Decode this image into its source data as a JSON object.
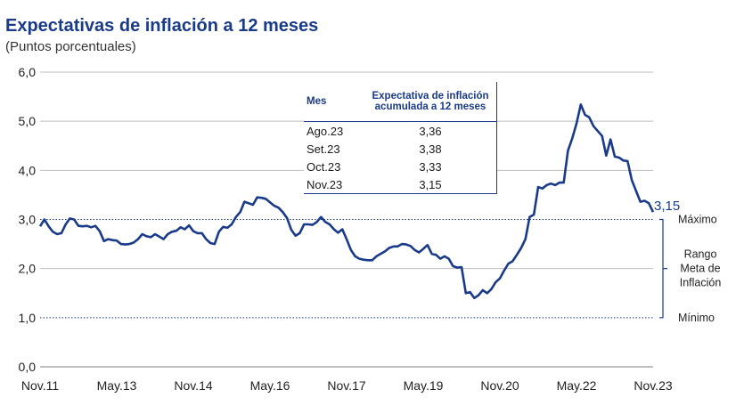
{
  "title": "Expectativas de inflación a 12 meses",
  "subtitle": "(Puntos porcentuales)",
  "table": {
    "headers": [
      "Mes",
      "Expectativa de inflación acumulada a 12 meses"
    ],
    "rows": [
      {
        "mes": "Ago.23",
        "valor": "3,36"
      },
      {
        "mes": "Set.23",
        "valor": "3,38"
      },
      {
        "mes": "Oct.23",
        "valor": "3,33"
      },
      {
        "mes": "Nov.23",
        "valor": "3,15"
      }
    ]
  },
  "range_labels": {
    "max": "Máximo",
    "min": "Mínimo",
    "band": [
      "Rango",
      "Meta de",
      "Inflación"
    ]
  },
  "last_value_label": "3,15",
  "colors": {
    "line": "#1a3a8a",
    "grid": "#bfbfbf",
    "target": "#1a3a8a"
  },
  "chart_data": {
    "type": "line",
    "title": "Expectativas de inflación a 12 meses",
    "ylabel": "(Puntos porcentuales)",
    "ylim": [
      0,
      6
    ],
    "yticks": [
      "0,0",
      "1,0",
      "2,0",
      "3,0",
      "4,0",
      "5,0",
      "6,0"
    ],
    "xlim": [
      "2011-11",
      "2023-11"
    ],
    "xticks": [
      "Nov.11",
      "May.13",
      "Nov.14",
      "May.16",
      "Nov.17",
      "May.19",
      "Nov.20",
      "May.22",
      "Nov.23"
    ],
    "grid": true,
    "target_range": [
      1,
      3
    ],
    "series": [
      {
        "values": [
          [
            "2011-11",
            2.86
          ],
          [
            "2011-12",
            3.0
          ],
          [
            "2012-01",
            2.86
          ],
          [
            "2012-02",
            2.75
          ],
          [
            "2012-03",
            2.7
          ],
          [
            "2012-04",
            2.72
          ],
          [
            "2012-05",
            2.9
          ],
          [
            "2012-06",
            3.02
          ],
          [
            "2012-07",
            3.0
          ],
          [
            "2012-08",
            2.87
          ],
          [
            "2012-09",
            2.86
          ],
          [
            "2012-10",
            2.87
          ],
          [
            "2012-11",
            2.84
          ],
          [
            "2012-12",
            2.87
          ],
          [
            "2013-01",
            2.76
          ],
          [
            "2013-02",
            2.56
          ],
          [
            "2013-03",
            2.6
          ],
          [
            "2013-04",
            2.58
          ],
          [
            "2013-05",
            2.57
          ],
          [
            "2013-06",
            2.5
          ],
          [
            "2013-07",
            2.49
          ],
          [
            "2013-08",
            2.5
          ],
          [
            "2013-09",
            2.53
          ],
          [
            "2013-10",
            2.6
          ],
          [
            "2013-11",
            2.7
          ],
          [
            "2013-12",
            2.66
          ],
          [
            "2014-01",
            2.64
          ],
          [
            "2014-02",
            2.7
          ],
          [
            "2014-03",
            2.65
          ],
          [
            "2014-04",
            2.6
          ],
          [
            "2014-05",
            2.7
          ],
          [
            "2014-06",
            2.75
          ],
          [
            "2014-07",
            2.77
          ],
          [
            "2014-08",
            2.84
          ],
          [
            "2014-09",
            2.8
          ],
          [
            "2014-10",
            2.88
          ],
          [
            "2014-11",
            2.76
          ],
          [
            "2014-12",
            2.72
          ],
          [
            "2015-01",
            2.72
          ],
          [
            "2015-02",
            2.6
          ],
          [
            "2015-03",
            2.52
          ],
          [
            "2015-04",
            2.5
          ],
          [
            "2015-05",
            2.75
          ],
          [
            "2015-06",
            2.85
          ],
          [
            "2015-07",
            2.83
          ],
          [
            "2015-08",
            2.9
          ],
          [
            "2015-09",
            3.05
          ],
          [
            "2015-10",
            3.15
          ],
          [
            "2015-11",
            3.36
          ],
          [
            "2015-12",
            3.33
          ],
          [
            "2016-01",
            3.3
          ],
          [
            "2016-02",
            3.45
          ],
          [
            "2016-03",
            3.44
          ],
          [
            "2016-04",
            3.42
          ],
          [
            "2016-05",
            3.35
          ],
          [
            "2016-06",
            3.28
          ],
          [
            "2016-07",
            3.24
          ],
          [
            "2016-08",
            3.15
          ],
          [
            "2016-09",
            3.03
          ],
          [
            "2016-10",
            2.79
          ],
          [
            "2016-11",
            2.67
          ],
          [
            "2016-12",
            2.72
          ],
          [
            "2017-01",
            2.9
          ],
          [
            "2017-02",
            2.9
          ],
          [
            "2017-03",
            2.89
          ],
          [
            "2017-04",
            2.95
          ],
          [
            "2017-05",
            3.05
          ],
          [
            "2017-06",
            2.95
          ],
          [
            "2017-07",
            2.9
          ],
          [
            "2017-08",
            2.8
          ],
          [
            "2017-09",
            2.73
          ],
          [
            "2017-10",
            2.8
          ],
          [
            "2017-11",
            2.6
          ],
          [
            "2017-12",
            2.38
          ],
          [
            "2018-01",
            2.25
          ],
          [
            "2018-02",
            2.2
          ],
          [
            "2018-03",
            2.18
          ],
          [
            "2018-04",
            2.17
          ],
          [
            "2018-05",
            2.17
          ],
          [
            "2018-06",
            2.25
          ],
          [
            "2018-07",
            2.3
          ],
          [
            "2018-08",
            2.35
          ],
          [
            "2018-09",
            2.42
          ],
          [
            "2018-10",
            2.45
          ],
          [
            "2018-11",
            2.45
          ],
          [
            "2018-12",
            2.5
          ],
          [
            "2019-01",
            2.49
          ],
          [
            "2019-02",
            2.46
          ],
          [
            "2019-03",
            2.38
          ],
          [
            "2019-04",
            2.33
          ],
          [
            "2019-05",
            2.4
          ],
          [
            "2019-06",
            2.48
          ],
          [
            "2019-07",
            2.3
          ],
          [
            "2019-08",
            2.28
          ],
          [
            "2019-09",
            2.2
          ],
          [
            "2019-10",
            2.25
          ],
          [
            "2019-11",
            2.2
          ],
          [
            "2019-12",
            2.05
          ],
          [
            "2020-01",
            2.02
          ],
          [
            "2020-02",
            2.03
          ],
          [
            "2020-03",
            1.5
          ],
          [
            "2020-04",
            1.52
          ],
          [
            "2020-05",
            1.4
          ],
          [
            "2020-06",
            1.46
          ],
          [
            "2020-07",
            1.56
          ],
          [
            "2020-08",
            1.5
          ],
          [
            "2020-09",
            1.58
          ],
          [
            "2020-10",
            1.72
          ],
          [
            "2020-11",
            1.8
          ],
          [
            "2020-12",
            1.96
          ],
          [
            "2021-01",
            2.1
          ],
          [
            "2021-02",
            2.15
          ],
          [
            "2021-03",
            2.28
          ],
          [
            "2021-04",
            2.42
          ],
          [
            "2021-05",
            2.6
          ],
          [
            "2021-06",
            3.05
          ],
          [
            "2021-07",
            3.1
          ],
          [
            "2021-08",
            3.66
          ],
          [
            "2021-09",
            3.63
          ],
          [
            "2021-10",
            3.7
          ],
          [
            "2021-11",
            3.73
          ],
          [
            "2021-12",
            3.7
          ],
          [
            "2022-01",
            3.75
          ],
          [
            "2022-02",
            3.75
          ],
          [
            "2022-03",
            4.4
          ],
          [
            "2022-04",
            4.65
          ],
          [
            "2022-05",
            4.95
          ],
          [
            "2022-06",
            5.34
          ],
          [
            "2022-07",
            5.13
          ],
          [
            "2022-08",
            5.08
          ],
          [
            "2022-09",
            4.9
          ],
          [
            "2022-10",
            4.8
          ],
          [
            "2022-11",
            4.7
          ],
          [
            "2022-12",
            4.3
          ],
          [
            "2023-01",
            4.63
          ],
          [
            "2023-02",
            4.28
          ],
          [
            "2023-03",
            4.26
          ],
          [
            "2023-04",
            4.2
          ],
          [
            "2023-05",
            4.19
          ],
          [
            "2023-06",
            3.8
          ],
          [
            "2023-07",
            3.58
          ],
          [
            "2023-08",
            3.36
          ],
          [
            "2023-09",
            3.38
          ],
          [
            "2023-10",
            3.33
          ],
          [
            "2023-11",
            3.15
          ]
        ]
      }
    ]
  }
}
